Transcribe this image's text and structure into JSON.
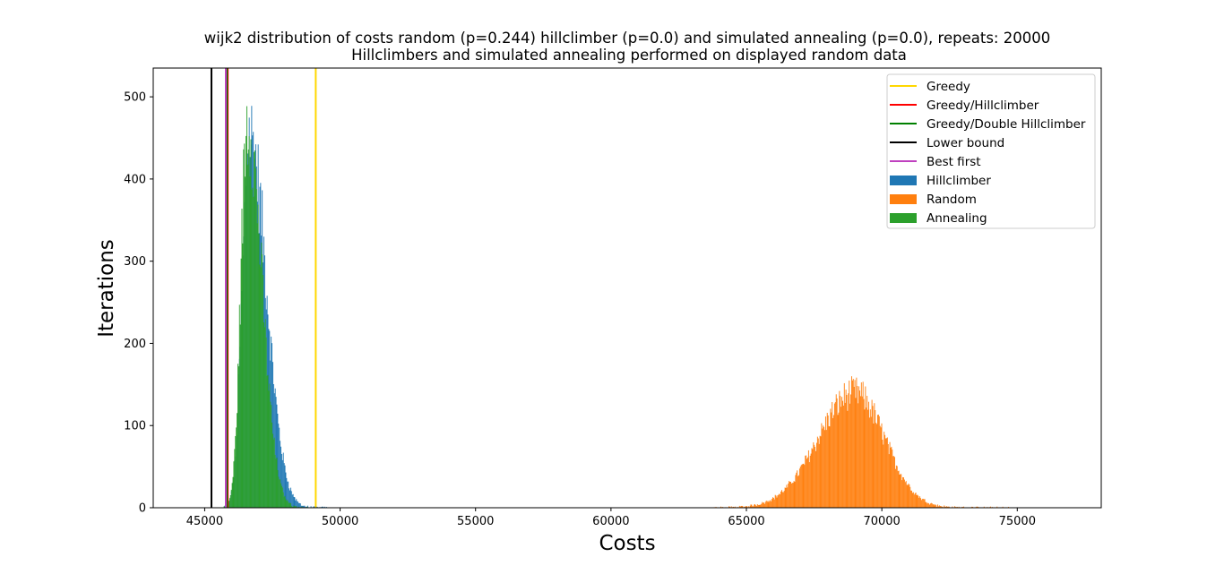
{
  "chart_data": {
    "type": "histogram",
    "title": "wijk2 distribution of costs random (p=0.244) hillclimber (p=0.0) and simulated annealing (p=0.0), repeats: 20000",
    "subtitle": "Hillclimbers and simulated annealing performed on displayed random data",
    "xlabel": "Costs",
    "ylabel": "Iterations",
    "xlim": [
      43100,
      78100
    ],
    "ylim": [
      0,
      535
    ],
    "xticks": [
      45000,
      50000,
      55000,
      60000,
      65000,
      70000,
      75000
    ],
    "yticks": [
      0,
      100,
      200,
      300,
      400,
      500
    ],
    "grid": false,
    "legend_position": "top-right",
    "vertical_lines": [
      {
        "name": "Greedy",
        "x": 49100,
        "color": "#ffd700"
      },
      {
        "name": "Greedy/Hillclimber",
        "x": 45850,
        "color": "#ff0000"
      },
      {
        "name": "Greedy/Double Hillclimber",
        "x": 45820,
        "color": "#008000"
      },
      {
        "name": "Lower bound",
        "x": 45250,
        "color": "#000000"
      },
      {
        "name": "Best first",
        "x": 45780,
        "color": "#bf40bf"
      }
    ],
    "histograms": [
      {
        "name": "Hillclimber",
        "color": "#1f77b4",
        "mode": 46650,
        "peak": 455,
        "sigma_left": 260,
        "sigma_right": 620,
        "min": 45700,
        "max": 49500
      },
      {
        "name": "Random",
        "color": "#ff7f0e",
        "mode": 69000,
        "peak": 140,
        "sigma_left": 1350,
        "sigma_right": 1100,
        "min": 63800,
        "max": 74700
      },
      {
        "name": "Annealing",
        "color": "#2ca02c",
        "mode": 46580,
        "peak": 470,
        "sigma_left": 240,
        "sigma_right": 520,
        "min": 45700,
        "max": 48800
      }
    ],
    "bin_width": 30
  }
}
